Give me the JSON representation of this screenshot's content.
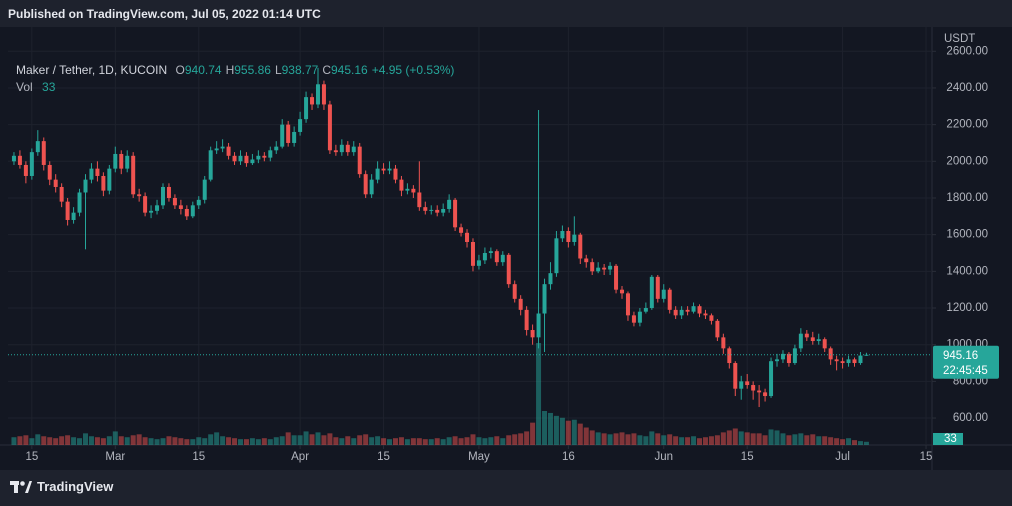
{
  "header": {
    "published": "Published on TradingView.com, Jul 05, 2022 01:14 UTC"
  },
  "chart_data": {
    "type": "candlestick",
    "symbol": "Maker / Tether, 1D, KUCOIN",
    "ohlc_labels": [
      "O",
      "H",
      "L",
      "C"
    ],
    "change_label": "+4.95 (+0.53%)",
    "volume_label": "Vol",
    "currency": "USDT",
    "countdown": "22:45:45",
    "up_color": "#26a69a",
    "down_color": "#ef5350",
    "grid": true,
    "xlim": [
      "2022-02-11",
      "2022-07-16"
    ],
    "xticks": [
      {
        "value": "2022-02-15",
        "label": "15"
      },
      {
        "value": "2022-03-01",
        "label": "Mar"
      },
      {
        "value": "2022-03-15",
        "label": "15"
      },
      {
        "value": "2022-04-01",
        "label": "Apr"
      },
      {
        "value": "2022-04-15",
        "label": "15"
      },
      {
        "value": "2022-05-01",
        "label": "May"
      },
      {
        "value": "2022-05-16",
        "label": "16"
      },
      {
        "value": "2022-06-01",
        "label": "Jun"
      },
      {
        "value": "2022-06-15",
        "label": "15"
      },
      {
        "value": "2022-07-01",
        "label": "Jul"
      },
      {
        "value": "2022-07-15",
        "label": "15"
      }
    ],
    "ylim": [
      453,
      2716
    ],
    "yticks": [
      {
        "value": 600,
        "label": "600.00"
      },
      {
        "value": 800,
        "label": "800.00"
      },
      {
        "value": 1000,
        "label": "1000.00"
      },
      {
        "value": 1200,
        "label": "1200.00"
      },
      {
        "value": 1400,
        "label": "1400.00"
      },
      {
        "value": 1600,
        "label": "1600.00"
      },
      {
        "value": 1800,
        "label": "1800.00"
      },
      {
        "value": 2000,
        "label": "2000.00"
      },
      {
        "value": 2200,
        "label": "2200.00"
      },
      {
        "value": 2400,
        "label": "2400.00"
      },
      {
        "value": 2600,
        "label": "2600.00"
      }
    ],
    "x": [
      "2022-02-12",
      "2022-02-13",
      "2022-02-14",
      "2022-02-15",
      "2022-02-16",
      "2022-02-17",
      "2022-02-18",
      "2022-02-19",
      "2022-02-20",
      "2022-02-21",
      "2022-02-22",
      "2022-02-23",
      "2022-02-24",
      "2022-02-25",
      "2022-02-26",
      "2022-02-27",
      "2022-02-28",
      "2022-03-01",
      "2022-03-02",
      "2022-03-03",
      "2022-03-04",
      "2022-03-05",
      "2022-03-06",
      "2022-03-07",
      "2022-03-08",
      "2022-03-09",
      "2022-03-10",
      "2022-03-11",
      "2022-03-12",
      "2022-03-13",
      "2022-03-14",
      "2022-03-15",
      "2022-03-16",
      "2022-03-17",
      "2022-03-18",
      "2022-03-19",
      "2022-03-20",
      "2022-03-21",
      "2022-03-22",
      "2022-03-23",
      "2022-03-24",
      "2022-03-25",
      "2022-03-26",
      "2022-03-27",
      "2022-03-28",
      "2022-03-29",
      "2022-03-30",
      "2022-03-31",
      "2022-04-01",
      "2022-04-02",
      "2022-04-03",
      "2022-04-04",
      "2022-04-05",
      "2022-04-06",
      "2022-04-07",
      "2022-04-08",
      "2022-04-09",
      "2022-04-10",
      "2022-04-11",
      "2022-04-12",
      "2022-04-13",
      "2022-04-14",
      "2022-04-15",
      "2022-04-16",
      "2022-04-17",
      "2022-04-18",
      "2022-04-19",
      "2022-04-20",
      "2022-04-21",
      "2022-04-22",
      "2022-04-23",
      "2022-04-24",
      "2022-04-25",
      "2022-04-26",
      "2022-04-27",
      "2022-04-28",
      "2022-04-29",
      "2022-04-30",
      "2022-05-01",
      "2022-05-02",
      "2022-05-03",
      "2022-05-04",
      "2022-05-05",
      "2022-05-06",
      "2022-05-07",
      "2022-05-08",
      "2022-05-09",
      "2022-05-10",
      "2022-05-11",
      "2022-05-12",
      "2022-05-13",
      "2022-05-14",
      "2022-05-15",
      "2022-05-16",
      "2022-05-17",
      "2022-05-18",
      "2022-05-19",
      "2022-05-20",
      "2022-05-21",
      "2022-05-22",
      "2022-05-23",
      "2022-05-24",
      "2022-05-25",
      "2022-05-26",
      "2022-05-27",
      "2022-05-28",
      "2022-05-29",
      "2022-05-30",
      "2022-05-31",
      "2022-06-01",
      "2022-06-02",
      "2022-06-03",
      "2022-06-04",
      "2022-06-05",
      "2022-06-06",
      "2022-06-07",
      "2022-06-08",
      "2022-06-09",
      "2022-06-10",
      "2022-06-11",
      "2022-06-12",
      "2022-06-13",
      "2022-06-14",
      "2022-06-15",
      "2022-06-16",
      "2022-06-17",
      "2022-06-18",
      "2022-06-19",
      "2022-06-20",
      "2022-06-21",
      "2022-06-22",
      "2022-06-23",
      "2022-06-24",
      "2022-06-25",
      "2022-06-26",
      "2022-06-27",
      "2022-06-28",
      "2022-06-29",
      "2022-06-30",
      "2022-07-01",
      "2022-07-02",
      "2022-07-03",
      "2022-07-04",
      "2022-07-05"
    ],
    "open": [
      2000,
      2030,
      1980,
      1920,
      2050,
      2110,
      1980,
      1900,
      1860,
      1780,
      1680,
      1720,
      1830,
      1900,
      1960,
      1920,
      1840,
      1960,
      2040,
      1960,
      2030,
      1820,
      1810,
      1720,
      1730,
      1760,
      1860,
      1800,
      1760,
      1740,
      1700,
      1760,
      1790,
      1900,
      2060,
      2070,
      2080,
      2030,
      2000,
      2030,
      1990,
      2010,
      2030,
      2020,
      2060,
      2080,
      2200,
      2100,
      2160,
      2230,
      2350,
      2310,
      2420,
      2310,
      2060,
      2050,
      2090,
      2050,
      2080,
      1930,
      1820,
      1900,
      1960,
      1950,
      1960,
      1900,
      1840,
      1850,
      1830,
      1750,
      1730,
      1735,
      1720,
      1740,
      1790,
      1640,
      1610,
      1560,
      1430,
      1460,
      1500,
      1510,
      1450,
      1490,
      1330,
      1250,
      1190,
      1080,
      1040,
      1170,
      1330,
      1390,
      1580,
      1620,
      1560,
      1600,
      1470,
      1450,
      1400,
      1420,
      1410,
      1430,
      1300,
      1280,
      1160,
      1120,
      1180,
      1200,
      1370,
      1250,
      1300,
      1190,
      1160,
      1190,
      1180,
      1210,
      1170,
      1160,
      1130,
      1040,
      980,
      900,
      760,
      800,
      780,
      750,
      740,
      720,
      910,
      920,
      950,
      900,
      980,
      1060,
      1040,
      1020,
      1030,
      980,
      920,
      910,
      900,
      920,
      900,
      940.74
    ],
    "high": [
      2050,
      2060,
      2000,
      2070,
      2170,
      2130,
      2000,
      1930,
      1880,
      1800,
      1750,
      1850,
      1930,
      1990,
      2000,
      1940,
      1980,
      2080,
      2060,
      2060,
      2050,
      1850,
      1830,
      1760,
      1790,
      1880,
      1880,
      1820,
      1790,
      1760,
      1780,
      1810,
      1920,
      2080,
      2110,
      2120,
      2100,
      2050,
      2060,
      2050,
      2040,
      2060,
      2050,
      2080,
      2110,
      2230,
      2220,
      2190,
      2270,
      2380,
      2370,
      2510,
      2440,
      2330,
      2090,
      2120,
      2110,
      2110,
      2100,
      1950,
      1930,
      2000,
      1990,
      2000,
      1980,
      1920,
      1880,
      1870,
      2000,
      1780,
      1760,
      1760,
      1770,
      1820,
      1800,
      1660,
      1630,
      1580,
      1490,
      1530,
      1530,
      1520,
      1510,
      1500,
      1350,
      1270,
      1210,
      1110,
      2280,
      1360,
      1450,
      1620,
      1650,
      1640,
      1700,
      1610,
      1490,
      1470,
      1450,
      1440,
      1450,
      1440,
      1320,
      1290,
      1180,
      1200,
      1230,
      1380,
      1380,
      1330,
      1310,
      1210,
      1210,
      1210,
      1230,
      1220,
      1190,
      1170,
      1140,
      1060,
      990,
      910,
      830,
      840,
      800,
      780,
      760,
      930,
      950,
      970,
      960,
      1000,
      1090,
      1080,
      1070,
      1060,
      1040,
      990,
      940,
      930,
      940,
      930,
      960,
      955.86
    ],
    "low": [
      1980,
      1960,
      1880,
      1900,
      2030,
      1950,
      1870,
      1830,
      1750,
      1650,
      1660,
      1700,
      1520,
      1880,
      1890,
      1810,
      1820,
      1940,
      1930,
      1940,
      1800,
      1780,
      1700,
      1690,
      1710,
      1740,
      1780,
      1740,
      1710,
      1680,
      1690,
      1740,
      1770,
      1890,
      2040,
      2050,
      2010,
      1980,
      1980,
      1970,
      1980,
      1990,
      2000,
      2000,
      2040,
      2070,
      2080,
      2080,
      2140,
      2210,
      2280,
      2290,
      2280,
      2040,
      2030,
      2030,
      2030,
      2030,
      1910,
      1800,
      1800,
      1880,
      1930,
      1930,
      1880,
      1810,
      1820,
      1800,
      1730,
      1710,
      1710,
      1700,
      1700,
      1720,
      1620,
      1590,
      1530,
      1400,
      1410,
      1440,
      1470,
      1430,
      1430,
      1310,
      1230,
      1160,
      1050,
      1000,
      980,
      960,
      1300,
      1370,
      1560,
      1530,
      1540,
      1440,
      1420,
      1380,
      1390,
      1380,
      1380,
      1280,
      1250,
      1130,
      1100,
      1100,
      1170,
      1190,
      1230,
      1230,
      1170,
      1140,
      1140,
      1160,
      1170,
      1150,
      1140,
      1110,
      1020,
      950,
      870,
      720,
      700,
      760,
      700,
      660,
      690,
      710,
      880,
      900,
      880,
      890,
      960,
      1020,
      1000,
      1000,
      960,
      890,
      860,
      870,
      880,
      880,
      890,
      938.77
    ],
    "close": [
      2030,
      1980,
      1920,
      2050,
      2110,
      1980,
      1900,
      1860,
      1780,
      1680,
      1720,
      1830,
      1900,
      1960,
      1920,
      1840,
      1960,
      2040,
      1960,
      2030,
      1820,
      1810,
      1720,
      1730,
      1760,
      1860,
      1800,
      1760,
      1740,
      1700,
      1760,
      1790,
      1900,
      2060,
      2070,
      2080,
      2030,
      2000,
      2030,
      1990,
      2010,
      2030,
      2020,
      2060,
      2080,
      2200,
      2100,
      2160,
      2230,
      2350,
      2310,
      2420,
      2310,
      2060,
      2050,
      2090,
      2050,
      2080,
      1930,
      1820,
      1900,
      1960,
      1950,
      1960,
      1900,
      1840,
      1850,
      1830,
      1750,
      1730,
      1735,
      1720,
      1740,
      1790,
      1640,
      1610,
      1560,
      1430,
      1460,
      1500,
      1510,
      1450,
      1490,
      1330,
      1250,
      1190,
      1080,
      1040,
      1170,
      1330,
      1390,
      1580,
      1620,
      1560,
      1600,
      1470,
      1450,
      1400,
      1420,
      1410,
      1430,
      1300,
      1280,
      1160,
      1120,
      1180,
      1200,
      1370,
      1250,
      1300,
      1190,
      1160,
      1190,
      1180,
      1210,
      1170,
      1160,
      1130,
      1040,
      980,
      900,
      760,
      800,
      780,
      750,
      740,
      720,
      910,
      920,
      950,
      900,
      980,
      1060,
      1040,
      1020,
      1030,
      980,
      920,
      910,
      900,
      920,
      900,
      940.74,
      945.16
    ],
    "volume": [
      80,
      90,
      100,
      70,
      110,
      90,
      80,
      70,
      90,
      100,
      80,
      70,
      120,
      90,
      80,
      70,
      90,
      140,
      90,
      80,
      100,
      110,
      80,
      70,
      60,
      70,
      90,
      80,
      70,
      60,
      60,
      80,
      70,
      110,
      130,
      90,
      80,
      70,
      60,
      60,
      70,
      60,
      70,
      60,
      80,
      90,
      130,
      100,
      100,
      140,
      110,
      130,
      100,
      120,
      80,
      70,
      90,
      70,
      100,
      110,
      80,
      90,
      70,
      60,
      70,
      80,
      60,
      70,
      70,
      60,
      60,
      70,
      60,
      80,
      90,
      70,
      80,
      110,
      80,
      70,
      80,
      90,
      70,
      100,
      110,
      120,
      140,
      230,
      1050,
      350,
      330,
      300,
      280,
      250,
      260,
      220,
      180,
      150,
      130,
      120,
      110,
      120,
      130,
      110,
      120,
      100,
      90,
      140,
      120,
      100,
      110,
      90,
      80,
      80,
      90,
      70,
      80,
      90,
      100,
      130,
      150,
      170,
      140,
      130,
      120,
      120,
      100,
      160,
      150,
      120,
      100,
      110,
      120,
      100,
      110,
      90,
      90,
      80,
      70,
      60,
      70,
      50,
      40,
      33
    ]
  },
  "footer": {
    "brand": "TradingView"
  }
}
